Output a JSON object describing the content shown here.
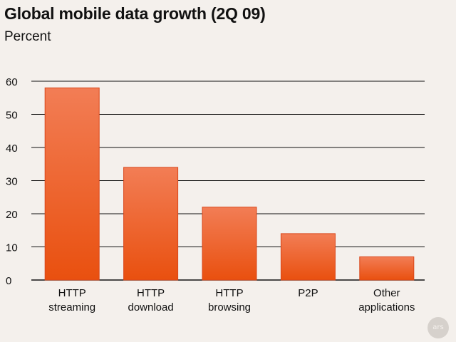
{
  "chart_data": {
    "type": "bar",
    "title": "Global mobile data growth (2Q 09)",
    "subtitle": "Percent",
    "categories": [
      [
        "HTTP",
        "streaming"
      ],
      [
        "HTTP",
        "download"
      ],
      [
        "HTTP",
        "browsing"
      ],
      [
        "P2P"
      ],
      [
        "Other",
        "applications"
      ]
    ],
    "values": [
      58,
      34,
      22,
      14,
      7
    ],
    "ylim": [
      0,
      60
    ],
    "yticks": [
      0,
      10,
      20,
      30,
      40,
      50,
      60
    ],
    "grid": true,
    "bar_color_top": "#f27d55",
    "bar_color_bottom": "#e9500f",
    "bar_stroke": "#d9461a"
  },
  "watermark": "ars"
}
